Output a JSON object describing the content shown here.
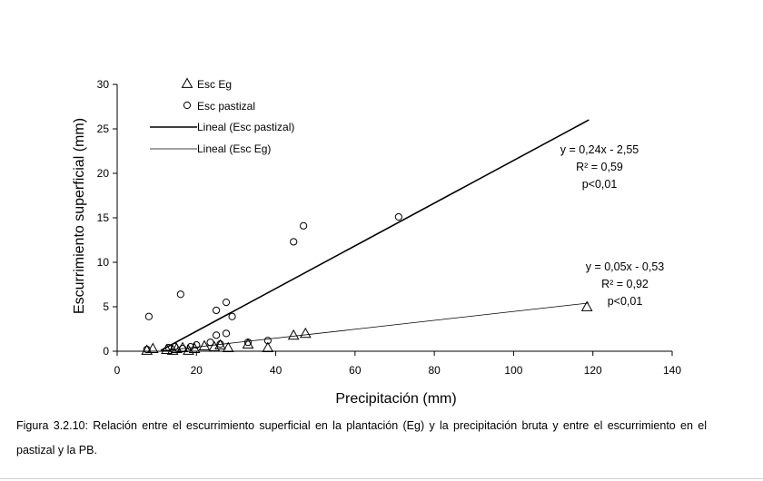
{
  "chart_data": {
    "type": "scatter",
    "title": "",
    "xlabel": "Precipitación (mm)",
    "ylabel": "Escurrimiento superficial (mm)",
    "xlim": [
      0,
      140
    ],
    "ylim": [
      0,
      30
    ],
    "xticks": [
      0,
      20,
      40,
      60,
      80,
      100,
      120,
      140
    ],
    "yticks": [
      0,
      5,
      10,
      15,
      20,
      25,
      30
    ],
    "grid": false,
    "legend_position": "top-left",
    "series": [
      {
        "name": "Esc Eg",
        "marker": "triangle",
        "points": [
          [
            7.5,
            0.1
          ],
          [
            9,
            0.3
          ],
          [
            12.5,
            0.2
          ],
          [
            14,
            0.1
          ],
          [
            15,
            0.3
          ],
          [
            16.5,
            0.4
          ],
          [
            18,
            0.1
          ],
          [
            19.5,
            0.3
          ],
          [
            22,
            0.6
          ],
          [
            24.5,
            0.5
          ],
          [
            26,
            0.7
          ],
          [
            28,
            0.4
          ],
          [
            33,
            0.8
          ],
          [
            38,
            0.4
          ],
          [
            44.5,
            1.8
          ],
          [
            47.5,
            2.0
          ],
          [
            118.5,
            5.0
          ]
        ]
      },
      {
        "name": "Esc pastizal",
        "marker": "circle",
        "points": [
          [
            7.5,
            0.2
          ],
          [
            8,
            3.9
          ],
          [
            13,
            0.4
          ],
          [
            14.5,
            0.5
          ],
          [
            16,
            6.4
          ],
          [
            16.5,
            0.3
          ],
          [
            18.5,
            0.5
          ],
          [
            20,
            0.7
          ],
          [
            23.5,
            1.0
          ],
          [
            25,
            4.6
          ],
          [
            25,
            1.8
          ],
          [
            26,
            0.8
          ],
          [
            27.5,
            5.5
          ],
          [
            27.5,
            2.0
          ],
          [
            29,
            3.9
          ],
          [
            33,
            1.0
          ],
          [
            38,
            1.2
          ],
          [
            44.5,
            12.3
          ],
          [
            47,
            14.1
          ],
          [
            71,
            15.1
          ]
        ]
      }
    ],
    "trendlines": [
      {
        "name": "Lineal (Esc pastizal)",
        "slope": 0.24,
        "intercept": -2.55,
        "x_range": [
          11,
          119
        ],
        "equation": "y = 0,24x - 2,55",
        "r2": "R² = 0,59",
        "p": "p<0,01",
        "weight": "heavy"
      },
      {
        "name": "Lineal (Esc Eg)",
        "slope": 0.05,
        "intercept": -0.53,
        "x_range": [
          11,
          119
        ],
        "equation": "y = 0,05x - 0,53",
        "r2": "R² = 0,92",
        "p": "p<0,01",
        "weight": "light"
      }
    ]
  },
  "caption": "Figura 3.2.10: Relación entre el escurrimiento superficial en la plantación (Eg) y la precipitación bruta y entre el escurrimiento en el pastizal y la PB."
}
